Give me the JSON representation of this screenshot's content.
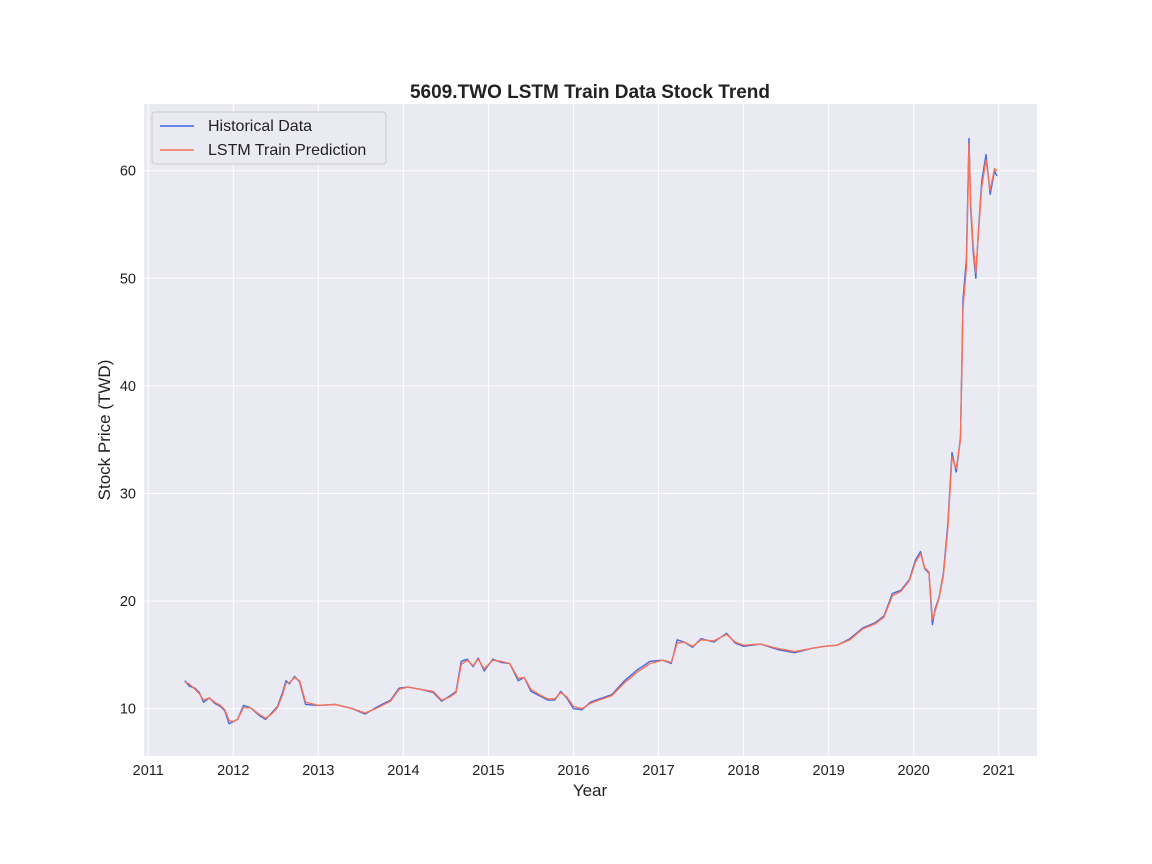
{
  "chart_data": {
    "type": "line",
    "title": "5609.TWO  LSTM Train Data Stock Trend",
    "xlabel": "Year",
    "ylabel": "Stock Price (TWD)",
    "xlim": [
      2010.95,
      2021.45
    ],
    "ylim": [
      5.6,
      66.2
    ],
    "xticks": [
      2011,
      2012,
      2013,
      2014,
      2015,
      2016,
      2017,
      2018,
      2019,
      2020,
      2021
    ],
    "xtick_labels": [
      "2011",
      "2012",
      "2013",
      "2014",
      "2015",
      "2016",
      "2017",
      "2018",
      "2019",
      "2020",
      "2021"
    ],
    "yticks": [
      10,
      20,
      30,
      40,
      50,
      60
    ],
    "ytick_labels": [
      "10",
      "20",
      "30",
      "40",
      "50",
      "60"
    ],
    "grid": true,
    "legend_position": "top-left",
    "series": [
      {
        "name": "Historical Data",
        "color": "#4169e1",
        "x": [
          2011.43,
          2011.48,
          2011.55,
          2011.6,
          2011.65,
          2011.72,
          2011.78,
          2011.85,
          2011.9,
          2011.95,
          2012.0,
          2012.05,
          2012.12,
          2012.2,
          2012.3,
          2012.38,
          2012.45,
          2012.52,
          2012.58,
          2012.62,
          2012.66,
          2012.72,
          2012.78,
          2012.85,
          2013.0,
          2013.2,
          2013.4,
          2013.55,
          2013.7,
          2013.85,
          2013.95,
          2014.05,
          2014.2,
          2014.35,
          2014.45,
          2014.55,
          2014.62,
          2014.68,
          2014.75,
          2014.82,
          2014.88,
          2014.95,
          2015.05,
          2015.15,
          2015.25,
          2015.35,
          2015.42,
          2015.5,
          2015.6,
          2015.7,
          2015.78,
          2015.85,
          2015.92,
          2016.0,
          2016.1,
          2016.2,
          2016.3,
          2016.45,
          2016.6,
          2016.75,
          2016.9,
          2017.05,
          2017.15,
          2017.22,
          2017.3,
          2017.4,
          2017.5,
          2017.65,
          2017.8,
          2017.9,
          2018.0,
          2018.2,
          2018.4,
          2018.6,
          2018.8,
          2018.95,
          2019.1,
          2019.25,
          2019.4,
          2019.55,
          2019.65,
          2019.75,
          2019.85,
          2019.95,
          2020.02,
          2020.08,
          2020.13,
          2020.18,
          2020.22,
          2020.25,
          2020.3,
          2020.35,
          2020.4,
          2020.45,
          2020.5,
          2020.55,
          2020.58,
          2020.62,
          2020.65,
          2020.67,
          2020.7,
          2020.73,
          2020.76,
          2020.8,
          2020.85,
          2020.9,
          2020.95,
          2020.98
        ],
        "y": [
          12.6,
          12.1,
          11.9,
          11.5,
          10.6,
          11.0,
          10.5,
          10.2,
          9.8,
          8.6,
          8.8,
          9.0,
          10.3,
          10.1,
          9.4,
          9.0,
          9.6,
          10.2,
          11.5,
          12.6,
          12.3,
          13.0,
          12.5,
          10.4,
          10.3,
          10.4,
          10.0,
          9.5,
          10.2,
          10.8,
          11.9,
          12.0,
          11.8,
          11.5,
          10.7,
          11.2,
          11.6,
          14.4,
          14.6,
          13.9,
          14.7,
          13.5,
          14.6,
          14.3,
          14.2,
          12.6,
          12.9,
          11.6,
          11.2,
          10.8,
          10.8,
          11.6,
          11.0,
          10.0,
          9.9,
          10.6,
          10.9,
          11.3,
          12.6,
          13.6,
          14.4,
          14.5,
          14.2,
          16.4,
          16.2,
          15.7,
          16.5,
          16.2,
          17.0,
          16.1,
          15.8,
          16.0,
          15.5,
          15.2,
          15.6,
          15.8,
          15.9,
          16.5,
          17.5,
          18.0,
          18.6,
          20.7,
          21.0,
          22.0,
          23.8,
          24.6,
          23.0,
          22.6,
          17.8,
          19.2,
          20.4,
          22.6,
          27.0,
          33.8,
          32.0,
          35.2,
          48.0,
          51.8,
          63.0,
          56.5,
          52.5,
          50.0,
          54.2,
          59.0,
          61.5,
          57.8,
          60.0,
          59.5
        ]
      },
      {
        "name": "LSTM Train Prediction",
        "color": "#fa7258",
        "x": [
          2011.43,
          2011.48,
          2011.55,
          2011.6,
          2011.65,
          2011.72,
          2011.78,
          2011.85,
          2011.9,
          2011.95,
          2012.0,
          2012.05,
          2012.12,
          2012.2,
          2012.3,
          2012.38,
          2012.45,
          2012.52,
          2012.58,
          2012.62,
          2012.66,
          2012.72,
          2012.78,
          2012.85,
          2013.0,
          2013.2,
          2013.4,
          2013.55,
          2013.7,
          2013.85,
          2013.95,
          2014.05,
          2014.2,
          2014.35,
          2014.45,
          2014.55,
          2014.62,
          2014.68,
          2014.75,
          2014.82,
          2014.88,
          2014.95,
          2015.05,
          2015.15,
          2015.25,
          2015.35,
          2015.42,
          2015.5,
          2015.6,
          2015.7,
          2015.78,
          2015.85,
          2015.92,
          2016.0,
          2016.1,
          2016.2,
          2016.3,
          2016.45,
          2016.6,
          2016.75,
          2016.9,
          2017.05,
          2017.15,
          2017.22,
          2017.3,
          2017.4,
          2017.5,
          2017.65,
          2017.8,
          2017.9,
          2018.0,
          2018.2,
          2018.4,
          2018.6,
          2018.8,
          2018.95,
          2019.1,
          2019.25,
          2019.4,
          2019.55,
          2019.65,
          2019.75,
          2019.85,
          2019.95,
          2020.02,
          2020.08,
          2020.13,
          2020.18,
          2020.22,
          2020.25,
          2020.3,
          2020.35,
          2020.4,
          2020.45,
          2020.5,
          2020.55,
          2020.58,
          2020.62,
          2020.65,
          2020.67,
          2020.7,
          2020.73,
          2020.76,
          2020.8,
          2020.85,
          2020.9,
          2020.95,
          2020.98
        ],
        "y": [
          12.5,
          12.3,
          11.8,
          11.4,
          10.8,
          11.0,
          10.6,
          10.3,
          9.9,
          8.9,
          8.8,
          9.0,
          10.1,
          10.1,
          9.5,
          9.1,
          9.5,
          10.1,
          11.3,
          12.4,
          12.4,
          12.9,
          12.6,
          10.6,
          10.3,
          10.4,
          10.0,
          9.6,
          10.1,
          10.7,
          11.8,
          12.0,
          11.8,
          11.6,
          10.8,
          11.1,
          11.5,
          14.1,
          14.5,
          14.0,
          14.6,
          13.7,
          14.5,
          14.4,
          14.2,
          12.8,
          12.9,
          11.8,
          11.3,
          10.9,
          10.9,
          11.5,
          11.1,
          10.2,
          10.0,
          10.5,
          10.8,
          11.2,
          12.4,
          13.4,
          14.2,
          14.5,
          14.3,
          16.1,
          16.2,
          15.8,
          16.4,
          16.3,
          16.9,
          16.2,
          15.9,
          16.0,
          15.6,
          15.3,
          15.6,
          15.8,
          15.9,
          16.4,
          17.4,
          17.9,
          18.5,
          20.5,
          20.9,
          21.9,
          23.6,
          24.4,
          23.1,
          22.7,
          18.3,
          19.0,
          20.3,
          22.4,
          26.6,
          33.4,
          32.3,
          35.0,
          47.2,
          51.0,
          62.5,
          57.0,
          53.0,
          50.5,
          54.0,
          58.5,
          61.0,
          58.2,
          60.2,
          60.0
        ]
      }
    ]
  }
}
